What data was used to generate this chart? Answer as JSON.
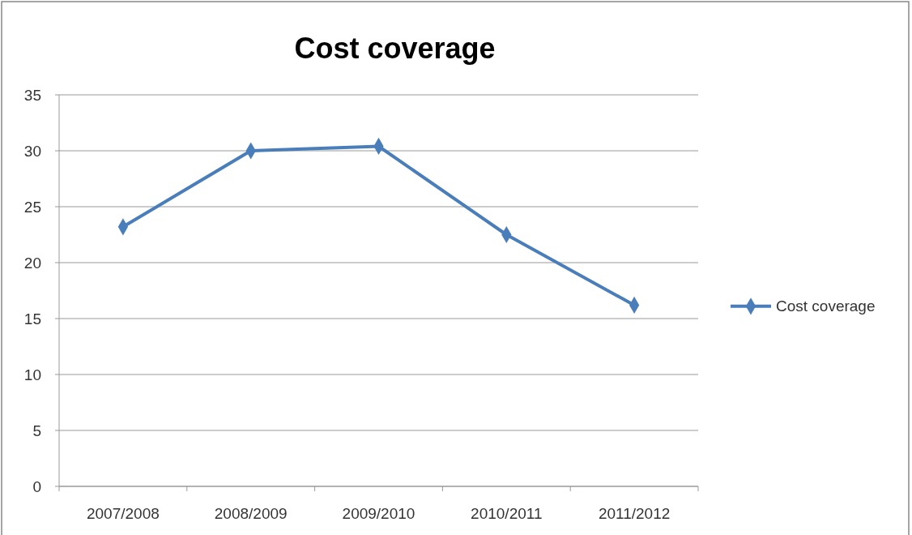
{
  "chart_data": {
    "type": "line",
    "title": "Cost coverage",
    "categories": [
      "2007/2008",
      "2008/2009",
      "2009/2010",
      "2010/2011",
      "2011/2012"
    ],
    "series": [
      {
        "name": "Cost coverage",
        "color": "#4a7ebb",
        "values": [
          23.2,
          30.0,
          30.4,
          22.5,
          16.2
        ]
      }
    ],
    "ylim": [
      0,
      35
    ],
    "yticks": [
      0,
      5,
      10,
      15,
      20,
      25,
      30,
      35
    ],
    "grid": "y",
    "legend": "right",
    "marker": "diamond",
    "line_style": "solid"
  }
}
